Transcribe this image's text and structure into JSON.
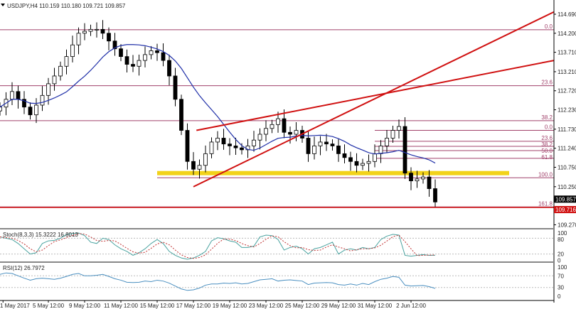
{
  "header": {
    "symbol_info": "USDJPY,H4  110.159 110.180 109.721 109.857"
  },
  "price_axis": {
    "labels": [
      "114.690",
      "114.200",
      "113.710",
      "113.210",
      "112.720",
      "112.230",
      "111.730",
      "111.240",
      "110.750",
      "110.250",
      "109.270"
    ],
    "bid_label": "109.857",
    "line_label": "109.716"
  },
  "time_axis": {
    "labels": [
      {
        "text": "1 May 2017",
        "time": "3 May 00:00"
      },
      {
        "text": "5 May 12:00",
        "time": "5 May 12:00"
      },
      {
        "text": "9 May 12:00",
        "time": "9 May 12:00"
      },
      {
        "text": "11 May 12:00",
        "time": "11 May 12:00"
      },
      {
        "text": "15 May 12:00",
        "time": "15 May 12:00"
      },
      {
        "text": "17 May 12:00",
        "time": "17 May 12:00"
      },
      {
        "text": "19 May 12:00",
        "time": "19 May 12:00"
      },
      {
        "text": "23 May 12:00",
        "time": "23 May 12:00"
      },
      {
        "text": "25 May 12:00",
        "time": "25 May 12:00"
      },
      {
        "text": "29 May 12:00",
        "time": "29 May 12:00"
      },
      {
        "text": "31 May 12:00",
        "time": "31 May 12:00"
      },
      {
        "text": "2 Jun 12:00",
        "time": "2 Jun 12:00"
      }
    ]
  },
  "colors": {
    "bull": "#ffffff",
    "bear": "#000000",
    "ma": "#1f2fa8",
    "trend": "#d01010",
    "support": "#f2d21a",
    "fib": "#a0406a",
    "stoch_main": "#4aa3a0",
    "stoch_signal": "#c03030",
    "rsi": "#4a8fc0"
  },
  "chart_data": {
    "type": "candlestick",
    "title": "USDJPY,H4",
    "ylim": [
      109.0,
      114.95
    ],
    "candles": {
      "start": "2 May 20:00",
      "step_hours": 8,
      "closes": [
        112.3,
        112.5,
        112.7,
        112.5,
        112.3,
        112.1,
        112.35,
        112.6,
        112.9,
        113.1,
        113.35,
        113.6,
        113.9,
        114.2,
        114.25,
        114.3,
        114.3,
        114.2,
        114.0,
        113.8,
        113.6,
        113.4,
        113.35,
        113.5,
        113.65,
        113.75,
        113.7,
        113.5,
        113.1,
        112.5,
        111.7,
        110.9,
        110.7,
        110.8,
        111.1,
        111.4,
        111.5,
        111.35,
        111.3,
        111.25,
        111.2,
        111.3,
        111.45,
        111.6,
        111.75,
        111.85,
        112.0,
        111.65,
        111.6,
        111.7,
        111.5,
        111.1,
        111.3,
        111.4,
        111.35,
        111.3,
        111.1,
        111.0,
        110.9,
        110.8,
        110.85,
        110.9,
        111.1,
        111.3,
        111.5,
        111.7,
        111.8,
        110.6,
        110.4,
        110.45,
        110.5,
        110.2,
        109.857
      ]
    },
    "trendlines": [
      {
        "from": {
          "time": "17 May 12:00",
          "price": 110.25
        },
        "to": {
          "time": "5 Jun 23:59",
          "price": 114.75
        }
      },
      {
        "from": {
          "time": "17 May 16:00",
          "price": 111.7
        },
        "to": {
          "time": "5 Jun 23:59",
          "price": 113.5
        }
      }
    ],
    "horizontal_line": {
      "price": 109.716
    },
    "support_zone": {
      "price": 110.6,
      "from": "15 May 12:00"
    },
    "fib_levels": [
      {
        "label": "0.0",
        "price": 114.29,
        "from": "1 May 00:00"
      },
      {
        "label": "23.6",
        "price": 112.85,
        "from": "1 May 00:00"
      },
      {
        "label": "38.2",
        "price": 111.95,
        "from": "1 May 00:00"
      },
      {
        "label": "0.0",
        "price": 111.7,
        "from": "31 May 12:00"
      },
      {
        "label": "23.6",
        "price": 111.42,
        "from": "31 May 12:00"
      },
      {
        "label": "38.2",
        "price": 111.29,
        "from": "31 May 12:00"
      },
      {
        "label": "50.0",
        "price": 111.18,
        "from": "31 May 12:00"
      },
      {
        "label": "61.8",
        "price": 110.98,
        "from": "31 May 12:00"
      },
      {
        "label": "100.0",
        "price": 110.48,
        "from": "15 May 12:00"
      },
      {
        "label": "161.8",
        "price": 109.73,
        "from": "1 May 00:00"
      }
    ],
    "stoch": {
      "label": "Stoch(8,3,3) 15.3222 16.8013",
      "levels": [
        "100",
        "80",
        "20",
        "0"
      ],
      "k": [
        85,
        80,
        75,
        60,
        40,
        20,
        25,
        60,
        70,
        72,
        80,
        95,
        98,
        100,
        90,
        65,
        60,
        80,
        75,
        55,
        40,
        30,
        15,
        25,
        40,
        60,
        75,
        60,
        30,
        15,
        5,
        0,
        5,
        15,
        30,
        70,
        82,
        78,
        70,
        65,
        45,
        45,
        50,
        85,
        92,
        90,
        75,
        35,
        45,
        50,
        40,
        20,
        40,
        45,
        55,
        65,
        20,
        35,
        40,
        35,
        45,
        40,
        45,
        75,
        88,
        95,
        92,
        15,
        12,
        15,
        18,
        15,
        15.3
      ]
    },
    "rsi": {
      "label": "RSI(12) 26.7972",
      "levels": [
        "100",
        "70",
        "30",
        "0"
      ],
      "values": [
        75,
        80,
        78,
        70,
        62,
        55,
        60,
        62,
        60,
        58,
        62,
        68,
        75,
        78,
        70,
        70,
        72,
        75,
        68,
        60,
        55,
        48,
        47,
        48,
        52,
        50,
        55,
        52,
        45,
        35,
        25,
        20,
        22,
        28,
        38,
        42,
        42,
        45,
        44,
        46,
        42,
        44,
        50,
        56,
        58,
        60,
        52,
        55,
        56,
        54,
        52,
        40,
        45,
        46,
        47,
        46,
        40,
        38,
        42,
        38,
        44,
        40,
        50,
        58,
        62,
        68,
        65,
        38,
        35,
        36,
        37,
        33,
        26.8
      ]
    }
  }
}
